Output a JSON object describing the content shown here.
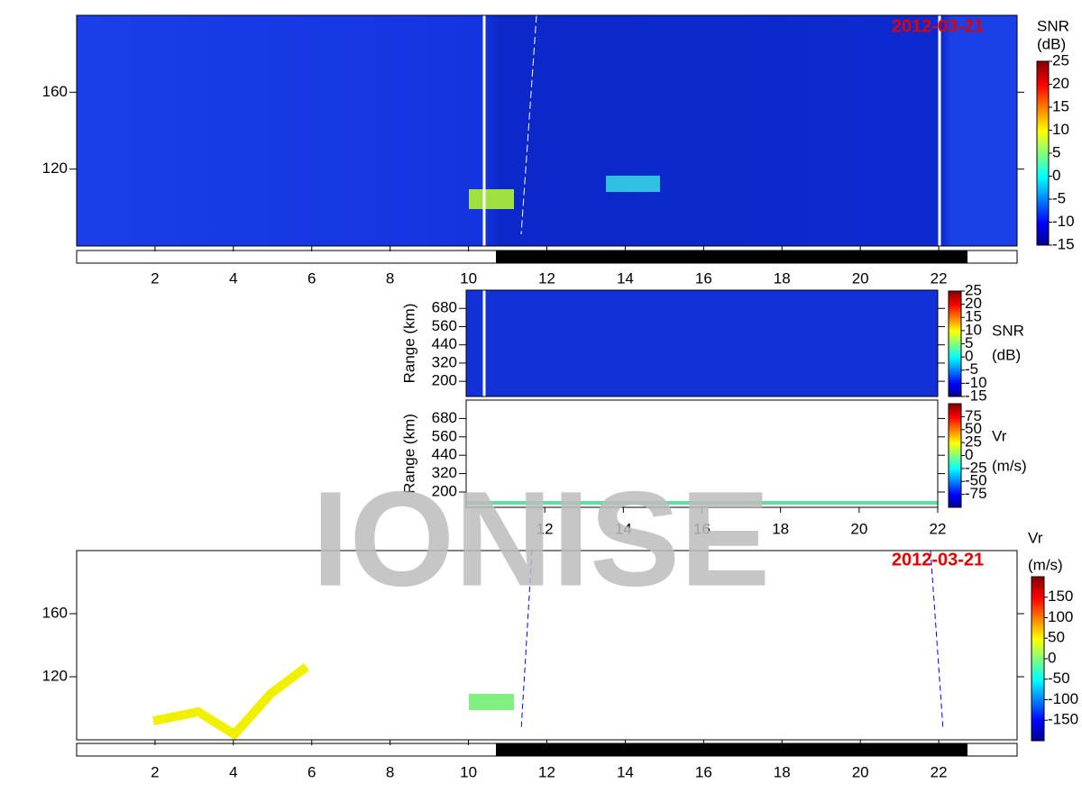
{
  "watermark": "IONISE",
  "chart_data": [
    {
      "type": "heatmap",
      "title": "2012-03-21",
      "colorbar_label": [
        "SNR",
        "(dB)"
      ],
      "xlim": [
        0,
        24
      ],
      "xticks": [
        2,
        4,
        6,
        8,
        10,
        12,
        14,
        16,
        18,
        20,
        22
      ],
      "ylim": [
        80,
        200
      ],
      "yticks": [
        120,
        160
      ],
      "clim": [
        -15,
        25
      ],
      "cticks": [
        25,
        20,
        15,
        10,
        5,
        0,
        -5,
        -10,
        -15
      ]
    },
    {
      "type": "heatmap",
      "ylabel": "Range (km)",
      "colorbar_label": [
        "SNR",
        "(dB)"
      ],
      "xlim": [
        10,
        22
      ],
      "ylim": [
        100,
        800
      ],
      "yticks": [
        200,
        320,
        440,
        560,
        680
      ],
      "clim": [
        -15,
        25
      ],
      "cticks": [
        25,
        20,
        15,
        10,
        5,
        0,
        -5,
        -10,
        -15
      ]
    },
    {
      "type": "heatmap",
      "ylabel": "Range (km)",
      "colorbar_label": [
        "Vr",
        "(m/s)"
      ],
      "xlim": [
        10,
        22
      ],
      "xticks": [
        12,
        14,
        16,
        18,
        20,
        22
      ],
      "ylim": [
        100,
        800
      ],
      "yticks": [
        200,
        320,
        440,
        560,
        680
      ],
      "clim": [
        -100,
        100
      ],
      "cticks": [
        75,
        50,
        25,
        0,
        -25,
        -50,
        -75
      ]
    },
    {
      "type": "heatmap",
      "title": "2012-03-21",
      "colorbar_label": [
        "Vr",
        "(m/s)"
      ],
      "xlim": [
        0,
        24
      ],
      "xticks": [
        2,
        4,
        6,
        8,
        10,
        12,
        14,
        16,
        18,
        20,
        22
      ],
      "ylim": [
        80,
        200
      ],
      "yticks": [
        120,
        160
      ],
      "clim": [
        -200,
        200
      ],
      "cticks": [
        150,
        100,
        50,
        0,
        -50,
        -100,
        -150
      ]
    }
  ]
}
